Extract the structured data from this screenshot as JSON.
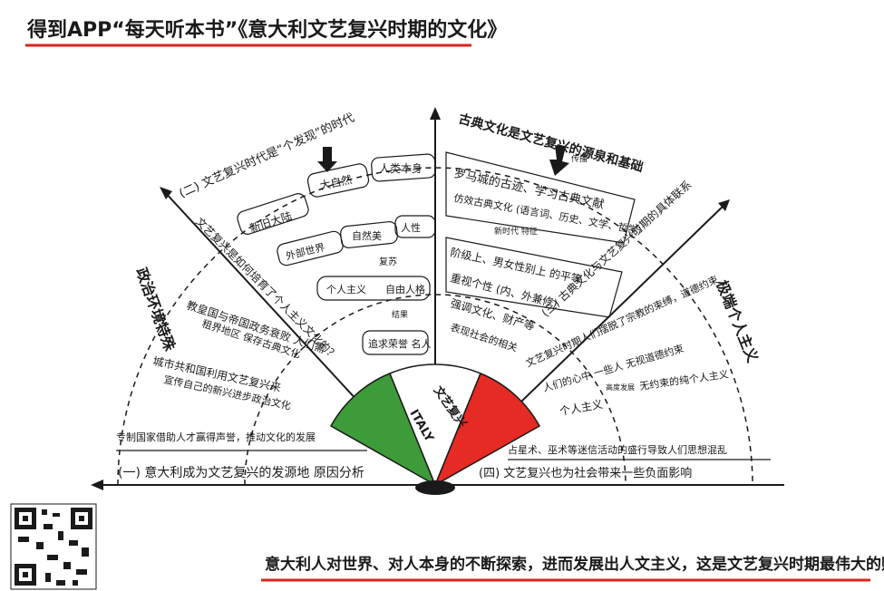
{
  "title": "得到APP“每天听本书”《意大利文艺复兴时期的文化》",
  "fan_center_label": "文艺复兴",
  "flag_label": "ITALY",
  "left_half": {
    "discovery_heading": "(二) 文艺复兴时代是“个发现”的时代",
    "nature_box": "大自然",
    "human_box": "人类本身",
    "new_continent_box": "新旧大陆",
    "outer_world_box": "外部世界",
    "natural_science_box": "自然美",
    "humanity_box": "人性",
    "rebirth_box": "复苏",
    "individualism_box": "个人主义",
    "free_personality_box": "自由人格",
    "result_label": "结果",
    "pursue_fame_box": "追求荣誉 名人",
    "culture_spread_label": "文艺复兴是如何培育了个人主义文化的？",
    "political_title": "政治环境特殊",
    "reason_1": "教皇国与帝国政务衰败 人们需",
    "reason_1b": "租界地区 保存古典文化",
    "reason_2": "城市共和国利用文艺复兴来",
    "reason_2b": "宣传自己的新兴进步政治文化",
    "reason_3": "专制国家借助人才赢得声誉，推动文化的发展",
    "section_one_title": "(一) 意大利成为文艺复兴的发源地 原因分析"
  },
  "right_half": {
    "classical_heading": "古典文化是文艺复兴的源泉和基础",
    "ruins_text": "罗马城的古迹、学习古典文献",
    "inherit_label": "传播",
    "imitate_text": "仿效古典文化 (语言词、历史、文学、哲学)",
    "new_era_label": "新时代 特征",
    "equality_text": "阶级上、男女性别上 的平等",
    "value_personality": "重视个性 (内、外兼修)",
    "emphasize_text": "强调文化、财产等",
    "sociality_text": "表现社会的相关",
    "section_three_heading": "(三) 古典文化与文艺复兴时期的具体联系",
    "extreme_individualism": "极端个人主义",
    "negative_1": "文艺复兴时期人们摆脱了宗教的束缚，道德约束",
    "negative_2": "人们的心中 一些人 无视道德约束",
    "individual": "个人主义",
    "absolute_label": "高度发展",
    "absolute_result": "无约束的纯个人主义",
    "astrology": "占星术、巫术等迷信活动的盛行导致人们思想混乱",
    "section_four_title": "(四) 文艺复兴也为社会带来一些负面影响"
  },
  "footer_text": "意大利人对世界、对人本身的不断探索，进而发展出人文主义，这是文艺复兴时期最伟大的财富",
  "colors": {
    "accent_red": "#d8261c",
    "flag_green": "#3e9b3a",
    "flag_red": "#e52b24",
    "ink": "#1a1a1a"
  }
}
